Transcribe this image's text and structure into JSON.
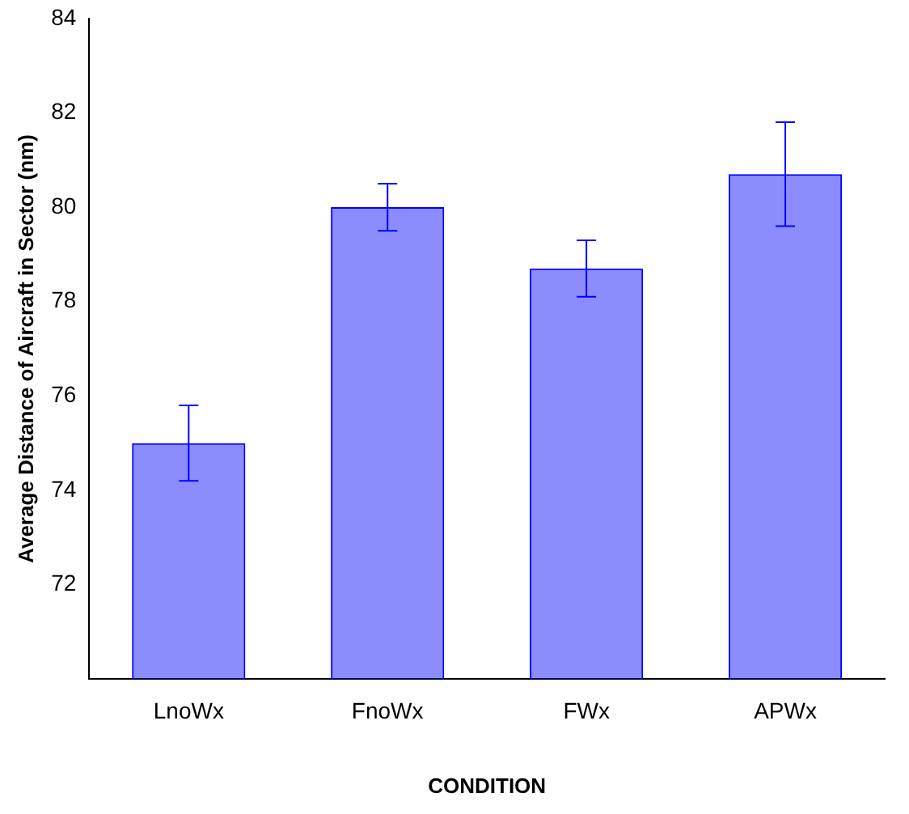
{
  "chart_data": {
    "type": "bar",
    "xlabel": "CONDITION",
    "ylabel": "Average Distance of Aircraft in Sector (nm)",
    "categories": [
      "LnoWx",
      "FnoWx",
      "FWx",
      "APWx"
    ],
    "values": [
      75.0,
      80.0,
      78.7,
      80.7
    ],
    "errors": [
      0.8,
      0.5,
      0.6,
      1.1
    ],
    "color": "#0000ff",
    "ylim": [
      70,
      84
    ],
    "yticks": [
      72,
      74,
      76,
      78,
      80,
      82,
      84
    ],
    "grid": false,
    "legend": false
  }
}
